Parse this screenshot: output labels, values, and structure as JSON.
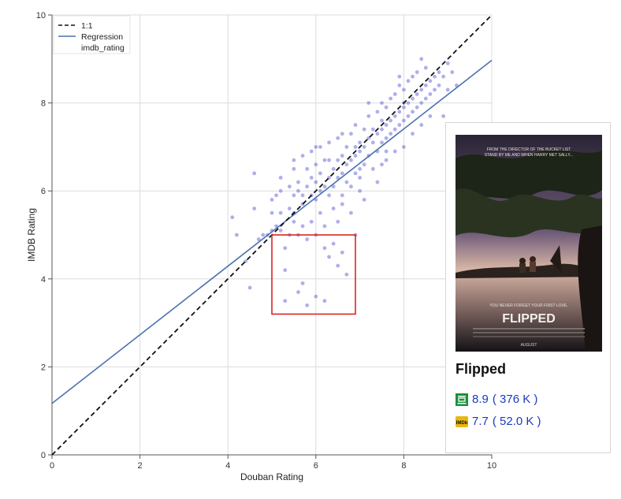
{
  "chart_data": {
    "type": "scatter",
    "xlabel": "Douban Rating",
    "ylabel": "IMDB Rating",
    "xlim": [
      0,
      10
    ],
    "ylim": [
      0,
      10
    ],
    "x_ticks": [
      "0",
      "2",
      "4",
      "6",
      "8",
      "10"
    ],
    "y_ticks": [
      "0",
      "2",
      "4",
      "6",
      "8",
      "10"
    ],
    "grid": true,
    "legend": {
      "placement": "top-left",
      "entries": [
        "1:1",
        "Regression",
        "imdb_rating"
      ]
    },
    "identity_line": {
      "name": "1:1",
      "from": [
        0,
        0
      ],
      "to": [
        10,
        10
      ],
      "color": "#111111",
      "style": "dashed"
    },
    "regression": {
      "name": "Regression",
      "intercept": 1.17,
      "slope": 0.78,
      "color": "#4a72b0"
    },
    "highlight_box": {
      "x": [
        5.0,
        6.9
      ],
      "y": [
        3.2,
        5.0
      ],
      "color": "#d9261c"
    },
    "point_color": "#5d5fd6",
    "series": [
      {
        "name": "imdb_rating",
        "points": [
          [
            4.1,
            5.4
          ],
          [
            4.2,
            5.0
          ],
          [
            4.4,
            4.4
          ],
          [
            4.5,
            3.8
          ],
          [
            4.6,
            6.4
          ],
          [
            4.6,
            5.6
          ],
          [
            4.7,
            4.9
          ],
          [
            4.8,
            5.0
          ],
          [
            4.9,
            5.0
          ],
          [
            5.0,
            5.1
          ],
          [
            5.0,
            5.5
          ],
          [
            5.0,
            5.8
          ],
          [
            5.1,
            5.9
          ],
          [
            5.1,
            5.2
          ],
          [
            5.2,
            5.1
          ],
          [
            5.2,
            6.0
          ],
          [
            5.2,
            6.3
          ],
          [
            5.3,
            4.7
          ],
          [
            5.3,
            4.2
          ],
          [
            5.3,
            3.5
          ],
          [
            5.4,
            5.0
          ],
          [
            5.4,
            5.6
          ],
          [
            5.4,
            6.1
          ],
          [
            5.5,
            5.3
          ],
          [
            5.5,
            5.5
          ],
          [
            5.5,
            5.9
          ],
          [
            5.5,
            6.5
          ],
          [
            5.6,
            5.0
          ],
          [
            5.6,
            6.0
          ],
          [
            5.6,
            6.2
          ],
          [
            5.6,
            3.7
          ],
          [
            5.7,
            6.8
          ],
          [
            5.7,
            5.7
          ],
          [
            5.7,
            5.2
          ],
          [
            5.7,
            3.9
          ],
          [
            5.8,
            4.9
          ],
          [
            5.8,
            6.1
          ],
          [
            5.8,
            6.5
          ],
          [
            5.8,
            3.4
          ],
          [
            5.9,
            5.3
          ],
          [
            5.9,
            5.9
          ],
          [
            5.9,
            6.3
          ],
          [
            5.9,
            6.9
          ],
          [
            6.0,
            5.8
          ],
          [
            6.0,
            6.2
          ],
          [
            6.0,
            6.6
          ],
          [
            6.0,
            5.0
          ],
          [
            6.0,
            3.6
          ],
          [
            6.1,
            6.0
          ],
          [
            6.1,
            6.4
          ],
          [
            6.1,
            5.5
          ],
          [
            6.1,
            7.0
          ],
          [
            6.2,
            6.1
          ],
          [
            6.2,
            6.7
          ],
          [
            6.2,
            5.2
          ],
          [
            6.2,
            4.7
          ],
          [
            6.2,
            3.5
          ],
          [
            6.3,
            6.3
          ],
          [
            6.3,
            5.9
          ],
          [
            6.3,
            7.1
          ],
          [
            6.3,
            4.5
          ],
          [
            6.4,
            6.5
          ],
          [
            6.4,
            6.1
          ],
          [
            6.4,
            5.6
          ],
          [
            6.4,
            4.8
          ],
          [
            6.5,
            6.7
          ],
          [
            6.5,
            6.3
          ],
          [
            6.5,
            7.2
          ],
          [
            6.5,
            5.3
          ],
          [
            6.5,
            4.3
          ],
          [
            6.6,
            6.4
          ],
          [
            6.6,
            6.8
          ],
          [
            6.6,
            5.9
          ],
          [
            6.6,
            4.6
          ],
          [
            6.7,
            6.6
          ],
          [
            6.7,
            7.0
          ],
          [
            6.7,
            6.2
          ],
          [
            6.7,
            4.1
          ],
          [
            6.8,
            6.7
          ],
          [
            6.8,
            7.3
          ],
          [
            6.8,
            6.1
          ],
          [
            6.8,
            5.5
          ],
          [
            6.9,
            6.8
          ],
          [
            6.9,
            6.4
          ],
          [
            6.9,
            7.5
          ],
          [
            6.9,
            5.0
          ],
          [
            7.0,
            6.9
          ],
          [
            7.0,
            7.1
          ],
          [
            7.0,
            6.5
          ],
          [
            7.0,
            6.0
          ],
          [
            7.1,
            7.0
          ],
          [
            7.1,
            7.4
          ],
          [
            7.1,
            6.6
          ],
          [
            7.1,
            5.8
          ],
          [
            7.2,
            7.2
          ],
          [
            7.2,
            6.8
          ],
          [
            7.2,
            7.7
          ],
          [
            7.3,
            7.1
          ],
          [
            7.3,
            7.4
          ],
          [
            7.3,
            6.5
          ],
          [
            7.4,
            7.3
          ],
          [
            7.4,
            6.9
          ],
          [
            7.4,
            7.8
          ],
          [
            7.4,
            6.2
          ],
          [
            7.5,
            7.4
          ],
          [
            7.5,
            7.1
          ],
          [
            7.5,
            8.0
          ],
          [
            7.5,
            6.6
          ],
          [
            7.6,
            7.5
          ],
          [
            7.6,
            7.2
          ],
          [
            7.6,
            7.9
          ],
          [
            7.6,
            6.7
          ],
          [
            7.7,
            7.6
          ],
          [
            7.7,
            7.3
          ],
          [
            7.7,
            8.1
          ],
          [
            7.8,
            7.7
          ],
          [
            7.8,
            7.4
          ],
          [
            7.8,
            8.2
          ],
          [
            7.8,
            6.9
          ],
          [
            7.9,
            7.8
          ],
          [
            7.9,
            7.5
          ],
          [
            7.9,
            8.4
          ],
          [
            8.0,
            7.9
          ],
          [
            8.0,
            7.6
          ],
          [
            8.0,
            8.3
          ],
          [
            8.0,
            7.0
          ],
          [
            8.1,
            8.0
          ],
          [
            8.1,
            7.7
          ],
          [
            8.1,
            8.5
          ],
          [
            8.2,
            8.1
          ],
          [
            8.2,
            7.8
          ],
          [
            8.2,
            8.6
          ],
          [
            8.2,
            7.3
          ],
          [
            8.3,
            8.2
          ],
          [
            8.3,
            7.9
          ],
          [
            8.3,
            8.7
          ],
          [
            8.4,
            8.3
          ],
          [
            8.4,
            8.0
          ],
          [
            8.4,
            7.5
          ],
          [
            8.5,
            8.4
          ],
          [
            8.5,
            8.1
          ],
          [
            8.5,
            8.8
          ],
          [
            8.6,
            8.5
          ],
          [
            8.6,
            8.2
          ],
          [
            8.6,
            7.7
          ],
          [
            8.7,
            8.6
          ],
          [
            8.7,
            8.3
          ],
          [
            8.8,
            8.7
          ],
          [
            8.8,
            8.4
          ],
          [
            8.9,
            8.6
          ],
          [
            8.9,
            7.7
          ],
          [
            9.0,
            8.9
          ],
          [
            9.0,
            8.3
          ],
          [
            9.1,
            8.7
          ],
          [
            9.2,
            8.4
          ],
          [
            5.5,
            6.7
          ],
          [
            6.0,
            7.0
          ],
          [
            6.6,
            7.3
          ],
          [
            7.2,
            8.0
          ],
          [
            7.9,
            8.6
          ],
          [
            8.4,
            9.0
          ],
          [
            5.2,
            5.5
          ],
          [
            5.7,
            5.9
          ],
          [
            6.3,
            6.7
          ],
          [
            6.9,
            7.0
          ],
          [
            7.5,
            7.6
          ],
          [
            8.0,
            8.0
          ],
          [
            6.6,
            5.7
          ],
          [
            7.0,
            6.3
          ],
          [
            7.6,
            6.9
          ]
        ]
      }
    ]
  },
  "card": {
    "title": "Flipped",
    "douban_rating": "8.9",
    "douban_votes": "( 376 K )",
    "imdb_rating": "7.7",
    "imdb_votes": "( 52.0 K )",
    "douban_icon": "douban-icon",
    "imdb_icon": "imdb-icon",
    "imdb_badge_text": "IMDb",
    "poster": {
      "tagline_top_1": "FROM THE DIRECTOR OF THE BUCKET LIST",
      "tagline_top_2": "STAND BY ME AND WHEN HARRY MET SALLY...",
      "tagline_bottom": "YOU NEVER FORGET YOUR FIRST LOVE.",
      "title": "FLIPPED",
      "month": "AUGUST"
    }
  }
}
